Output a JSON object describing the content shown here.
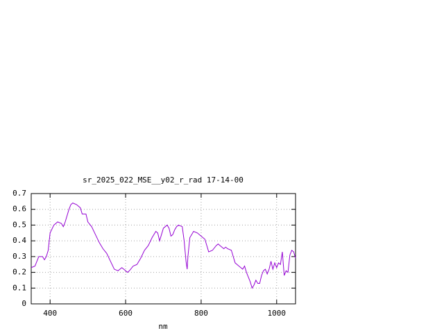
{
  "chart_data": {
    "type": "line",
    "title": "sr_2025_022_MSE__y02_r_rad 17-14-00",
    "x_label": "nm",
    "x": [
      350,
      360,
      370,
      380,
      385,
      390,
      395,
      400,
      410,
      420,
      430,
      435,
      440,
      450,
      455,
      460,
      470,
      480,
      485,
      490,
      495,
      500,
      510,
      520,
      530,
      540,
      550,
      560,
      570,
      580,
      590,
      600,
      605,
      610,
      620,
      630,
      640,
      650,
      660,
      670,
      680,
      685,
      690,
      695,
      700,
      710,
      715,
      720,
      725,
      730,
      735,
      740,
      750,
      755,
      760,
      763,
      765,
      770,
      780,
      790,
      800,
      810,
      815,
      820,
      830,
      840,
      845,
      850,
      860,
      865,
      870,
      880,
      885,
      890,
      900,
      910,
      915,
      920,
      930,
      935,
      940,
      945,
      950,
      955,
      960,
      965,
      970,
      975,
      980,
      985,
      990,
      995,
      1000,
      1005,
      1010,
      1015,
      1020,
      1025,
      1030,
      1035,
      1040,
      1045,
      1050
    ],
    "values": [
      0.23,
      0.24,
      0.3,
      0.3,
      0.28,
      0.3,
      0.34,
      0.45,
      0.5,
      0.52,
      0.51,
      0.49,
      0.52,
      0.6,
      0.63,
      0.64,
      0.63,
      0.61,
      0.57,
      0.57,
      0.57,
      0.52,
      0.49,
      0.44,
      0.39,
      0.35,
      0.32,
      0.27,
      0.22,
      0.21,
      0.23,
      0.21,
      0.2,
      0.21,
      0.24,
      0.25,
      0.29,
      0.34,
      0.37,
      0.42,
      0.46,
      0.45,
      0.4,
      0.44,
      0.48,
      0.5,
      0.48,
      0.43,
      0.44,
      0.47,
      0.49,
      0.5,
      0.49,
      0.4,
      0.27,
      0.22,
      0.3,
      0.42,
      0.46,
      0.45,
      0.43,
      0.41,
      0.37,
      0.33,
      0.34,
      0.37,
      0.38,
      0.37,
      0.35,
      0.36,
      0.35,
      0.34,
      0.3,
      0.26,
      0.24,
      0.22,
      0.24,
      0.2,
      0.14,
      0.1,
      0.12,
      0.15,
      0.13,
      0.13,
      0.18,
      0.21,
      0.22,
      0.19,
      0.22,
      0.27,
      0.22,
      0.26,
      0.23,
      0.26,
      0.25,
      0.33,
      0.18,
      0.21,
      0.2,
      0.31,
      0.34,
      0.33,
      0.29
    ],
    "color": "#9400d3",
    "xlim": [
      350,
      1050
    ],
    "ylim": [
      0,
      0.7
    ],
    "xticks": [
      400,
      600,
      800,
      1000
    ],
    "yticks": [
      0,
      0.1,
      0.2,
      0.3,
      0.4,
      0.5,
      0.6,
      0.7
    ],
    "grid": true
  }
}
